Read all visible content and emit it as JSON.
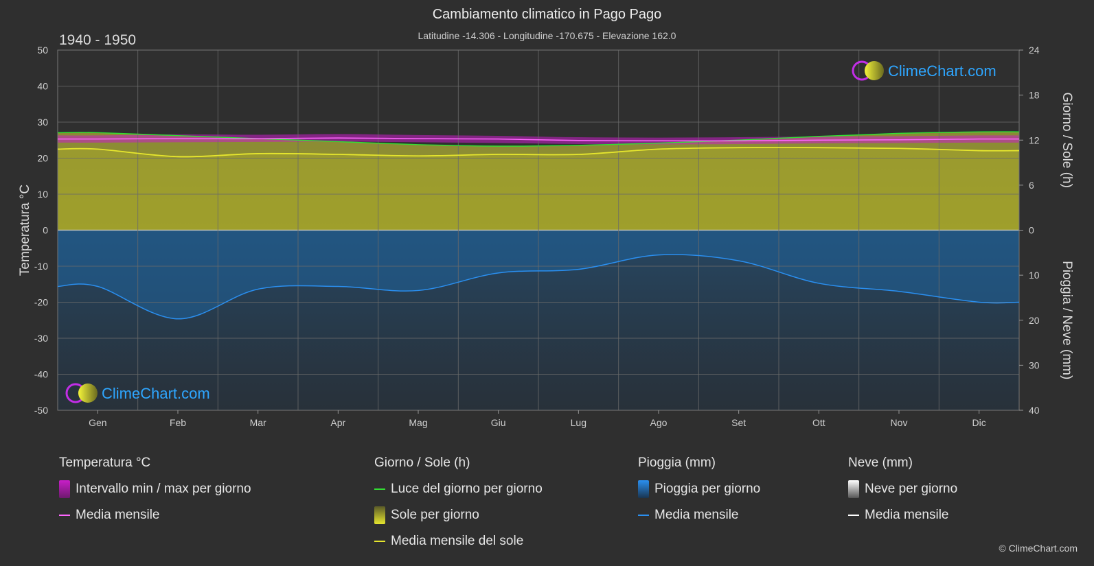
{
  "title": "Cambiamento climatico in Pago Pago",
  "subtitle": "Latitudine -14.306 - Longitudine -170.675 - Elevazione 162.0",
  "period": "1940 - 1950",
  "copyright": "© ClimeChart.com",
  "logo_text": "ClimeChart.com",
  "colors": {
    "temp_range": "#c81ec8",
    "temp_mean": "#ff66ff",
    "daylight": "#33dd33",
    "sun_fill": "#9b9b2f",
    "sun_mean": "#e6e62e",
    "rain_fill": "#1f5a8c",
    "rain_mean": "#2a8ff0",
    "snow_mean": "#ffffff"
  },
  "chart_data": {
    "type": "area",
    "months": [
      "Gen",
      "Feb",
      "Mar",
      "Apr",
      "Mag",
      "Giu",
      "Lug",
      "Ago",
      "Set",
      "Ott",
      "Nov",
      "Dic"
    ],
    "left_axis": {
      "label": "Temperatura °C",
      "min": -50,
      "max": 50,
      "ticks": [
        50,
        40,
        30,
        20,
        10,
        0,
        -10,
        -20,
        -30,
        -40,
        -50
      ]
    },
    "right_axis_top": {
      "label": "Giorno / Sole (h)",
      "min": 0,
      "max": 24,
      "ticks": [
        24,
        18,
        12,
        6,
        0
      ]
    },
    "right_axis_bottom": {
      "label": "Pioggia / Neve (mm)",
      "min": 0,
      "max": 40,
      "ticks": [
        0,
        10,
        20,
        30,
        40
      ]
    },
    "grid": true,
    "series": [
      {
        "name": "Luce del giorno per giorno",
        "axis": "hours",
        "values": [
          13.0,
          12.6,
          12.2,
          11.8,
          11.4,
          11.2,
          11.3,
          11.6,
          12.0,
          12.5,
          12.9,
          13.1
        ]
      },
      {
        "name": "Media mensile del sole",
        "axis": "hours",
        "values": [
          10.8,
          9.8,
          10.2,
          10.1,
          9.9,
          10.1,
          10.1,
          10.8,
          11.0,
          11.0,
          10.9,
          10.6
        ]
      },
      {
        "name": "Media mensile",
        "group": "temperature",
        "axis": "temperature",
        "values": [
          25.3,
          25.4,
          25.4,
          25.6,
          25.4,
          25.3,
          24.9,
          24.8,
          24.8,
          25.0,
          25.1,
          25.3
        ]
      },
      {
        "name": "Temperatura min",
        "axis": "temperature",
        "values": [
          24.3,
          24.4,
          24.5,
          24.6,
          24.4,
          24.2,
          23.9,
          23.8,
          23.9,
          24.1,
          24.2,
          24.3
        ]
      },
      {
        "name": "Temperatura max",
        "axis": "temperature",
        "values": [
          26.3,
          26.6,
          26.5,
          26.7,
          26.4,
          26.2,
          25.8,
          25.7,
          25.8,
          26.0,
          26.1,
          26.3
        ]
      },
      {
        "name": "Media mensile",
        "group": "rain",
        "axis": "precipitation",
        "values": [
          12.5,
          19.7,
          13.1,
          12.5,
          13.4,
          9.5,
          8.7,
          5.5,
          6.8,
          11.8,
          13.6,
          16.0
        ]
      }
    ]
  },
  "legend": {
    "temperature": {
      "header": "Temperatura °C",
      "items": [
        "Intervallo min / max per giorno",
        "Media mensile"
      ]
    },
    "sun": {
      "header": "Giorno / Sole (h)",
      "items": [
        "Luce del giorno per giorno",
        "Sole per giorno",
        "Media mensile del sole"
      ]
    },
    "rain": {
      "header": "Pioggia (mm)",
      "items": [
        "Pioggia per giorno",
        "Media mensile"
      ]
    },
    "snow": {
      "header": "Neve (mm)",
      "items": [
        "Neve per giorno",
        "Media mensile"
      ]
    }
  }
}
